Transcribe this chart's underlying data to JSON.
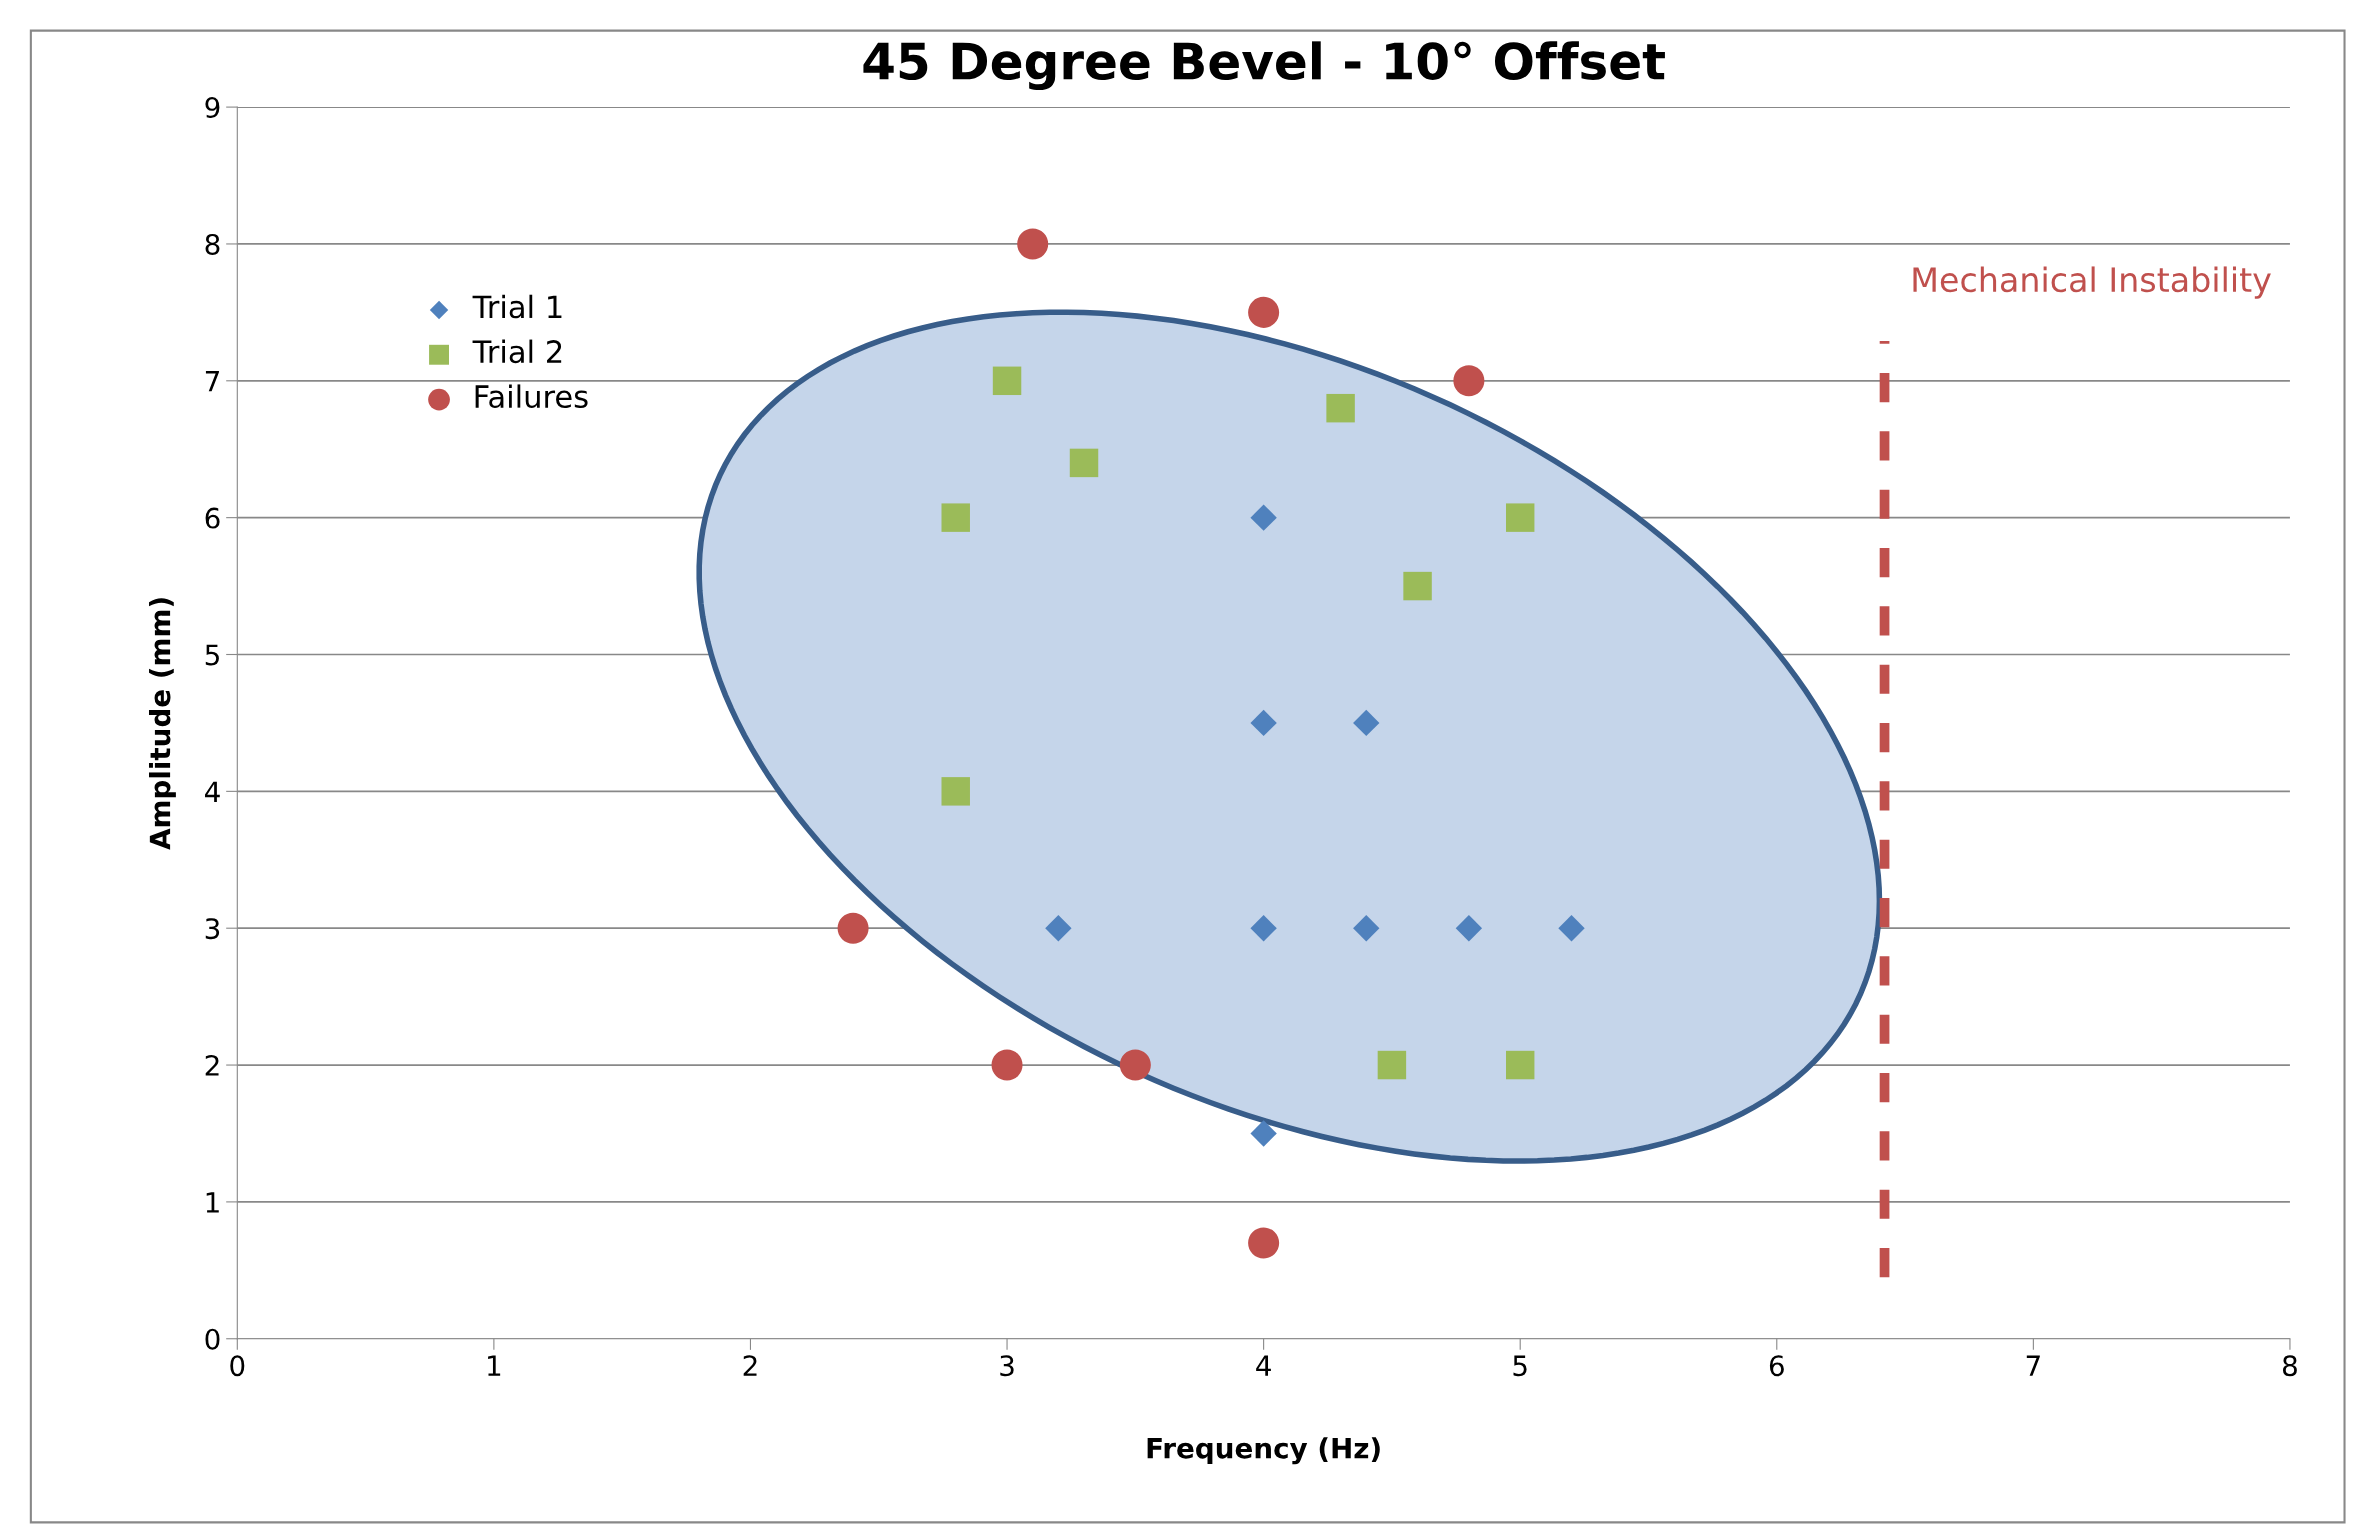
{
  "chart_data": {
    "type": "scatter",
    "title": "45 Degree Bevel - 10° Offset",
    "xlabel": "Frequency (Hz)",
    "ylabel": "Amplitude (mm)",
    "xlim": [
      0,
      8
    ],
    "xticks": [
      0,
      1,
      2,
      3,
      4,
      5,
      6,
      7,
      8
    ],
    "ylim": [
      0,
      9
    ],
    "yticks": [
      0,
      1,
      2,
      3,
      4,
      5,
      6,
      7,
      8,
      9
    ],
    "grid": "y",
    "legend": "top left",
    "series": [
      {
        "name": "Trial 1",
        "color": "#4f81bd",
        "marker": "diamond",
        "x": [
          4,
          4,
          4.4,
          3.2,
          4,
          4.4,
          4.8,
          5.2,
          4
        ],
        "values": [
          6,
          4.5,
          4.5,
          3,
          3,
          3,
          3,
          3,
          1.5
        ]
      },
      {
        "name": "Trial 2",
        "color": "#9bbb59",
        "marker": "square",
        "x": [
          3,
          4.3,
          3.3,
          2.8,
          5,
          4.6,
          2.8,
          4.5,
          5
        ],
        "values": [
          7,
          6.8,
          6.4,
          6,
          6,
          5.5,
          4,
          2,
          2
        ]
      },
      {
        "name": "Failures",
        "color": "#c0504d",
        "marker": "circle",
        "x": [
          3.1,
          4,
          4.8,
          2.4,
          3,
          3.5,
          4
        ],
        "values": [
          8,
          7.5,
          7,
          3,
          2,
          2,
          0.7
        ]
      }
    ],
    "ref_lines": [
      {
        "axis": "x",
        "value": 6.42,
        "label": "Mechanical Instability",
        "color": "#c0504d",
        "line_style": "dashed"
      }
    ]
  }
}
